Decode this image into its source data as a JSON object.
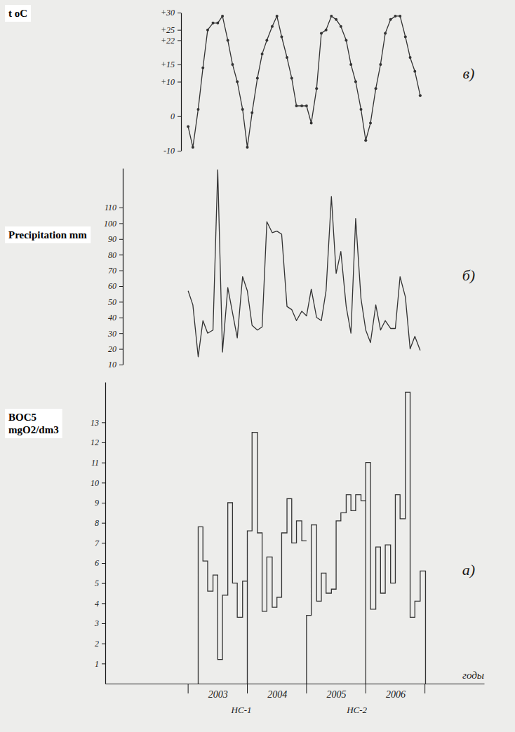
{
  "chart_data": [
    {
      "type": "line",
      "ylabel": "t oC",
      "panel_label": "в)",
      "tick_labels": "y",
      "color": "#333333",
      "marker": "circle",
      "x": [
        2003,
        2003.08,
        2003.17,
        2003.25,
        2003.33,
        2003.42,
        2003.5,
        2003.58,
        2003.67,
        2003.75,
        2003.83,
        2003.92,
        2004,
        2004.08,
        2004.17,
        2004.25,
        2004.33,
        2004.42,
        2004.5,
        2004.58,
        2004.67,
        2004.75,
        2004.83,
        2004.92,
        2005,
        2005.08,
        2005.17,
        2005.25,
        2005.33,
        2005.42,
        2005.5,
        2005.58,
        2005.67,
        2005.75,
        2005.83,
        2005.92,
        2006,
        2006.08,
        2006.17,
        2006.25,
        2006.33,
        2006.42,
        2006.5,
        2006.58,
        2006.67,
        2006.75,
        2006.83,
        2006.92
      ],
      "values": [
        -3,
        -9,
        2,
        14,
        25,
        27,
        27,
        29,
        22,
        15,
        10,
        2,
        -9,
        1,
        11,
        18,
        22,
        26,
        29,
        23,
        17,
        11,
        3,
        3,
        3,
        -2,
        8,
        24,
        25,
        29,
        28,
        26,
        22,
        15,
        10,
        2,
        -7,
        -2,
        8,
        15,
        24,
        28,
        29,
        29,
        23,
        17,
        13,
        6
      ],
      "ylim": [
        -10,
        30
      ],
      "yticks": [
        {
          "value": 30,
          "label": "+30"
        },
        {
          "value": 25,
          "label": "+25"
        },
        {
          "value": 22,
          "label": "+22"
        },
        {
          "value": 15,
          "label": "+15"
        },
        {
          "value": 10,
          "label": "+10"
        },
        0,
        -10
      ]
    },
    {
      "type": "line",
      "ylabel": "Precipitation mm",
      "panel_label": "б)",
      "tick_labels": "y",
      "color": "#333333",
      "x": [
        2003,
        2003.08,
        2003.17,
        2003.25,
        2003.33,
        2003.42,
        2003.5,
        2003.58,
        2003.67,
        2003.75,
        2003.83,
        2003.92,
        2004,
        2004.08,
        2004.17,
        2004.25,
        2004.33,
        2004.42,
        2004.5,
        2004.58,
        2004.67,
        2004.75,
        2004.83,
        2004.92,
        2005,
        2005.08,
        2005.17,
        2005.25,
        2005.33,
        2005.42,
        2005.5,
        2005.58,
        2005.67,
        2005.75,
        2005.83,
        2005.92,
        2006,
        2006.08,
        2006.17,
        2006.25,
        2006.33,
        2006.42,
        2006.5,
        2006.58,
        2006.67,
        2006.75,
        2006.83,
        2006.92
      ],
      "values": [
        57,
        48,
        15,
        38,
        30,
        32,
        134,
        18,
        59,
        43,
        27,
        66,
        57,
        35,
        32,
        34,
        101,
        94,
        95,
        93,
        47,
        45,
        38,
        44,
        41,
        58,
        40,
        38,
        57,
        117,
        68,
        82,
        47,
        30,
        103,
        52,
        32,
        24,
        48,
        32,
        38,
        33,
        33,
        66,
        53,
        20,
        28,
        19
      ],
      "ylim": [
        10,
        135
      ],
      "yticks": [
        10,
        20,
        30,
        40,
        50,
        60,
        70,
        80,
        90,
        100,
        110
      ]
    },
    {
      "type": "step",
      "ylabel": "BOC5 mgO2/dm3",
      "panel_label": "а)",
      "xlabel": "годы",
      "color": "#333333",
      "x": [
        2003.17,
        2003.25,
        2003.33,
        2003.42,
        2003.5,
        2003.58,
        2003.67,
        2003.75,
        2003.83,
        2003.92,
        2004,
        2004.08,
        2004.17,
        2004.25,
        2004.33,
        2004.42,
        2004.5,
        2004.58,
        2004.67,
        2004.75,
        2004.83,
        2004.92,
        2005,
        2005.08,
        2005.17,
        2005.25,
        2005.33,
        2005.42,
        2005.5,
        2005.58,
        2005.67,
        2005.75,
        2005.83,
        2005.92,
        2006,
        2006.08,
        2006.17,
        2006.25,
        2006.33,
        2006.42,
        2006.5,
        2006.58,
        2006.67,
        2006.75,
        2006.83,
        2006.92
      ],
      "values": [
        7.8,
        6.1,
        4.6,
        5.4,
        1.2,
        4.4,
        9.0,
        5.0,
        3.3,
        5.1,
        7.6,
        12.5,
        7.5,
        3.6,
        6.3,
        3.8,
        4.3,
        7.5,
        9.2,
        7.0,
        8.1,
        7.1,
        3.4,
        7.9,
        4.1,
        5.5,
        4.5,
        4.7,
        8.1,
        8.5,
        9.4,
        8.6,
        9.4,
        9.1,
        11.0,
        3.7,
        6.8,
        4.5,
        6.9,
        5.0,
        9.4,
        8.2,
        14.5,
        3.3,
        4.1,
        5.6
      ],
      "xlim": [
        2001.6,
        2008.0
      ],
      "xticks": [
        {
          "value": 2003.5,
          "label": "2003"
        },
        {
          "value": 2004.5,
          "label": "2004"
        },
        {
          "value": 2005.5,
          "label": "2005"
        },
        {
          "value": 2006.5,
          "label": "2006"
        }
      ],
      "ylim": [
        0,
        15
      ],
      "yticks": [
        1,
        2,
        3,
        4,
        5,
        6,
        7,
        8,
        9,
        10,
        11,
        12,
        13
      ],
      "annotations": [
        {
          "text": "НС-1",
          "x": 2003.9
        },
        {
          "text": "НС-2",
          "x": 2005.85
        }
      ]
    }
  ]
}
